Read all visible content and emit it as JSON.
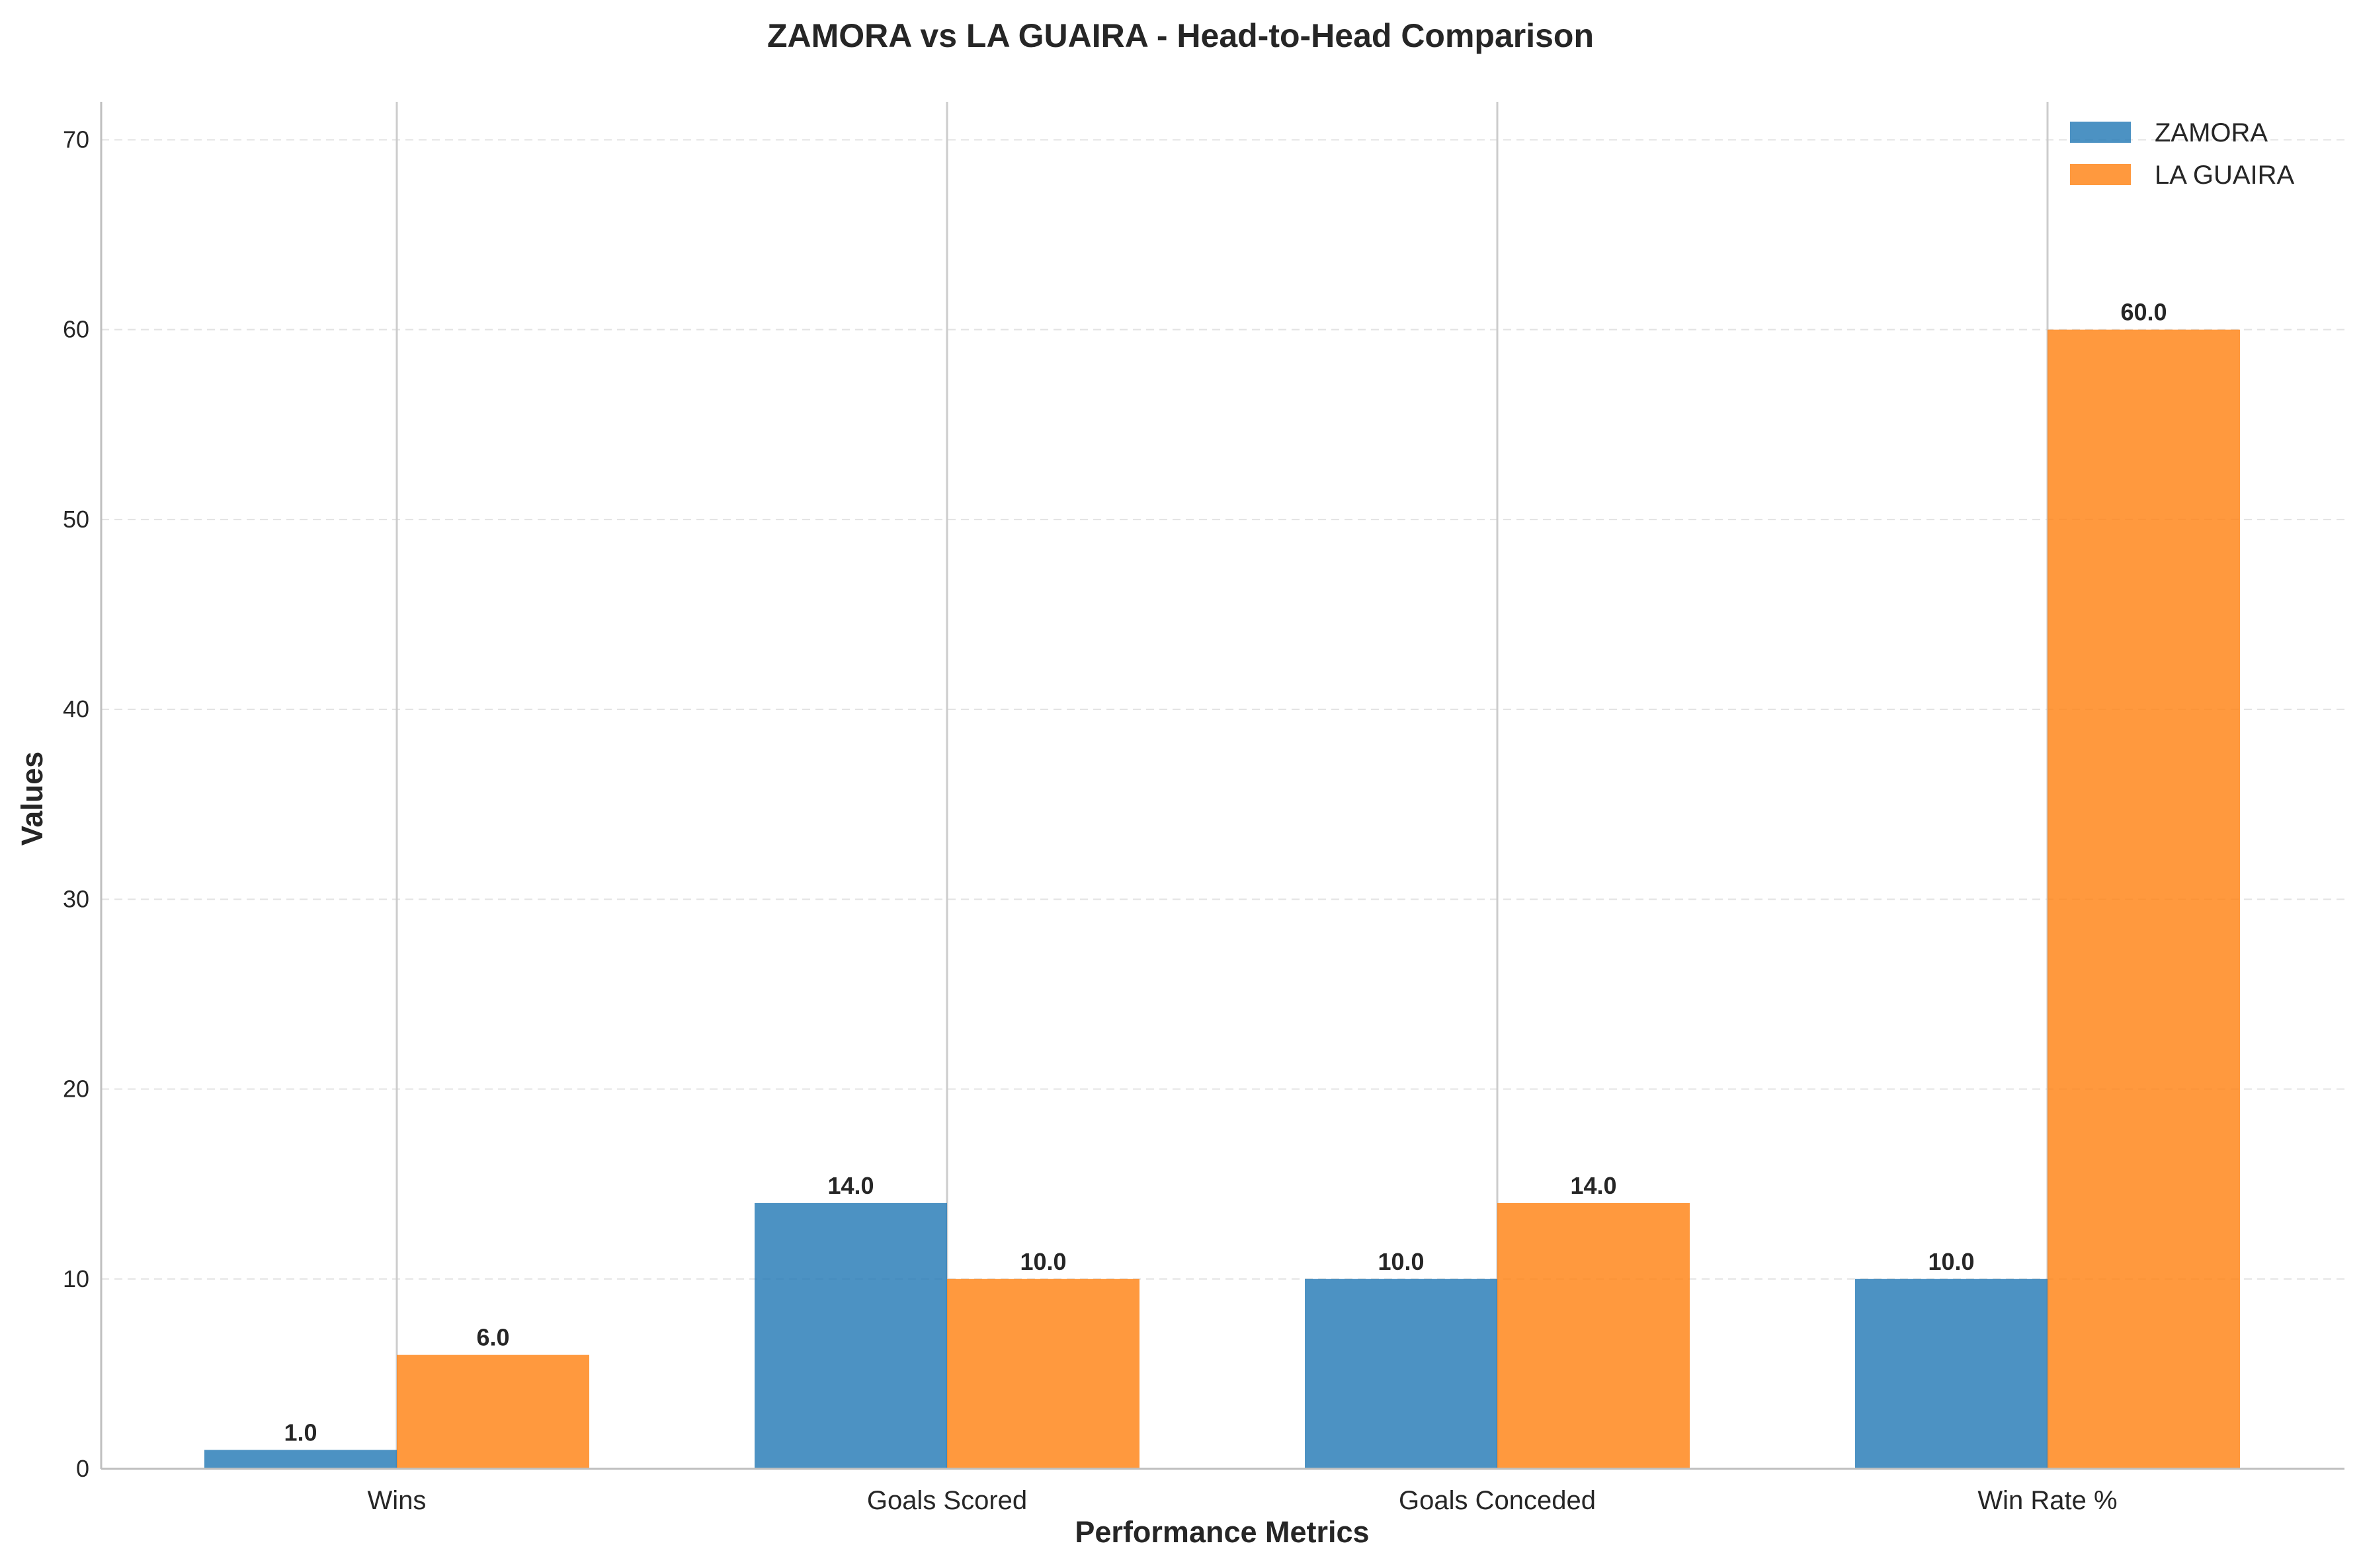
{
  "chart_data": {
    "type": "bar",
    "title": "ZAMORA vs LA GUAIRA - Head-to-Head Comparison",
    "xlabel": "Performance Metrics",
    "ylabel": "Values",
    "categories": [
      "Wins",
      "Goals Scored",
      "Goals Conceded",
      "Win Rate %"
    ],
    "series": [
      {
        "name": "ZAMORA",
        "values": [
          1.0,
          14.0,
          10.0,
          10.0
        ],
        "color": "#1f77b4"
      },
      {
        "name": "LA GUAIRA",
        "values": [
          6.0,
          10.0,
          14.0,
          60.0
        ],
        "color": "#ff7f0e"
      }
    ],
    "ylim": [
      0,
      72
    ],
    "yticks": [
      0,
      10,
      20,
      30,
      40,
      50,
      60,
      70
    ],
    "grid": true,
    "legend": "top-right",
    "data_labels": true
  }
}
